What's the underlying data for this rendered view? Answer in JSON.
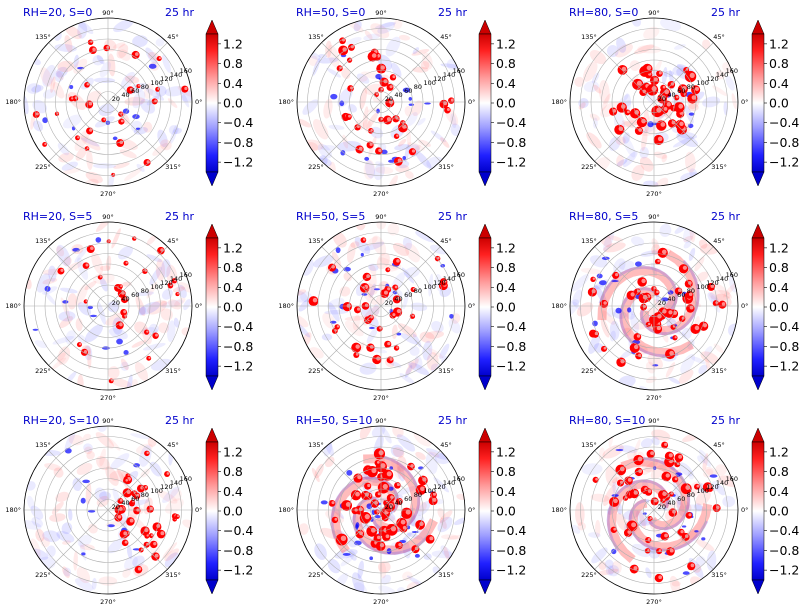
{
  "figure": {
    "hours_label": "25 hr",
    "colors": {
      "title": "#0000cc",
      "positive": "#ff0000",
      "negative": "#0000ff",
      "neutral": "#ffffff",
      "grid": "#b0b0b0",
      "axis": "#000000"
    }
  },
  "chart_data": [
    {
      "type": "heatmap",
      "projection": "polar",
      "title": "RH=20, S=0",
      "rh": 20,
      "s": 0,
      "activity": "sparse",
      "theta_ticks": [
        "90°",
        "135°",
        "180°",
        "225°",
        "270°",
        "315°",
        "0°",
        "45°"
      ],
      "r_ticks": [
        "20",
        "40",
        "60",
        "80",
        "100",
        "120",
        "140",
        "160"
      ],
      "colorbar": {
        "ticks": [
          1.2,
          0.8,
          0.4,
          0.0,
          -0.4,
          -0.8,
          -1.2
        ],
        "range": [
          -1.4,
          1.4
        ],
        "extend": "both"
      }
    },
    {
      "type": "heatmap",
      "projection": "polar",
      "title": "RH=50, S=0",
      "rh": 50,
      "s": 0,
      "activity": "moderate",
      "theta_ticks": [
        "90°",
        "135°",
        "180°",
        "225°",
        "270°",
        "315°",
        "0°",
        "45°"
      ],
      "r_ticks": [
        "20",
        "40",
        "60",
        "80",
        "100",
        "120",
        "140",
        "160"
      ],
      "colorbar": {
        "ticks": [
          1.2,
          0.8,
          0.4,
          0.0,
          -0.4,
          -0.8,
          -1.2
        ],
        "range": [
          -1.4,
          1.4
        ],
        "extend": "both"
      }
    },
    {
      "type": "heatmap",
      "projection": "polar",
      "title": "RH=80, S=0",
      "rh": 80,
      "s": 0,
      "activity": "central ring",
      "theta_ticks": [
        "90°",
        "135°",
        "180°",
        "225°",
        "270°",
        "315°",
        "0°",
        "45°"
      ],
      "r_ticks": [
        "20",
        "40",
        "60",
        "80",
        "100",
        "120",
        "140",
        "160"
      ],
      "colorbar": {
        "ticks": [
          1.2,
          0.8,
          0.4,
          0.0,
          -0.4,
          -0.8,
          -1.2
        ],
        "range": [
          -1.4,
          1.4
        ],
        "extend": "both"
      }
    },
    {
      "type": "heatmap",
      "projection": "polar",
      "title": "RH=20, S=5",
      "rh": 20,
      "s": 5,
      "activity": "sparse",
      "theta_ticks": [
        "90°",
        "135°",
        "180°",
        "225°",
        "270°",
        "315°",
        "0°",
        "45°"
      ],
      "r_ticks": [
        "20",
        "40",
        "60",
        "80",
        "100",
        "120",
        "140",
        "160"
      ],
      "colorbar": {
        "ticks": [
          1.2,
          0.8,
          0.4,
          0.0,
          -0.4,
          -0.8,
          -1.2
        ],
        "range": [
          -1.4,
          1.4
        ],
        "extend": "both"
      }
    },
    {
      "type": "heatmap",
      "projection": "polar",
      "title": "RH=50, S=5",
      "rh": 50,
      "s": 5,
      "activity": "moderate",
      "theta_ticks": [
        "90°",
        "135°",
        "180°",
        "225°",
        "270°",
        "315°",
        "0°",
        "45°"
      ],
      "r_ticks": [
        "20",
        "40",
        "60",
        "80",
        "100",
        "120",
        "140",
        "160"
      ],
      "colorbar": {
        "ticks": [
          1.2,
          0.8,
          0.4,
          0.0,
          -0.4,
          -0.8,
          -1.2
        ],
        "range": [
          -1.4,
          1.4
        ],
        "extend": "both"
      }
    },
    {
      "type": "heatmap",
      "projection": "polar",
      "title": "RH=80, S=5",
      "rh": 80,
      "s": 5,
      "activity": "spiral bands",
      "theta_ticks": [
        "90°",
        "135°",
        "180°",
        "225°",
        "270°",
        "315°",
        "0°",
        "45°"
      ],
      "r_ticks": [
        "20",
        "40",
        "60",
        "80",
        "100",
        "120",
        "140",
        "160"
      ],
      "colorbar": {
        "ticks": [
          1.2,
          0.8,
          0.4,
          0.0,
          -0.4,
          -0.8,
          -1.2
        ],
        "range": [
          -1.4,
          1.4
        ],
        "extend": "both"
      }
    },
    {
      "type": "heatmap",
      "projection": "polar",
      "title": "RH=20, S=10",
      "rh": 20,
      "s": 10,
      "activity": "east-side cluster",
      "theta_ticks": [
        "90°",
        "135°",
        "180°",
        "225°",
        "270°",
        "315°",
        "0°",
        "45°"
      ],
      "r_ticks": [
        "20",
        "40",
        "60",
        "80",
        "100",
        "120",
        "140",
        "160"
      ],
      "colorbar": {
        "ticks": [
          1.2,
          0.8,
          0.4,
          0.0,
          -0.4,
          -0.8,
          -1.2
        ],
        "range": [
          -1.4,
          1.4
        ],
        "extend": "both"
      }
    },
    {
      "type": "heatmap",
      "projection": "polar",
      "title": "RH=50, S=10",
      "rh": 50,
      "s": 10,
      "activity": "strong central bands",
      "theta_ticks": [
        "90°",
        "135°",
        "180°",
        "225°",
        "270°",
        "315°",
        "0°",
        "45°"
      ],
      "r_ticks": [
        "20",
        "40",
        "60",
        "80",
        "100",
        "120",
        "140",
        "160"
      ],
      "colorbar": {
        "ticks": [
          1.2,
          0.8,
          0.4,
          0.0,
          -0.4,
          -0.8,
          -1.2
        ],
        "range": [
          -1.4,
          1.4
        ],
        "extend": "both"
      }
    },
    {
      "type": "heatmap",
      "projection": "polar",
      "title": "RH=80, S=10",
      "rh": 80,
      "s": 10,
      "activity": "spiral bands",
      "theta_ticks": [
        "90°",
        "135°",
        "180°",
        "225°",
        "270°",
        "315°",
        "0°",
        "45°"
      ],
      "r_ticks": [
        "20",
        "40",
        "60",
        "80",
        "100",
        "120",
        "140",
        "160"
      ],
      "colorbar": {
        "ticks": [
          1.2,
          0.8,
          0.4,
          0.0,
          -0.4,
          -0.8,
          -1.2
        ],
        "range": [
          -1.4,
          1.4
        ],
        "extend": "both"
      }
    }
  ]
}
